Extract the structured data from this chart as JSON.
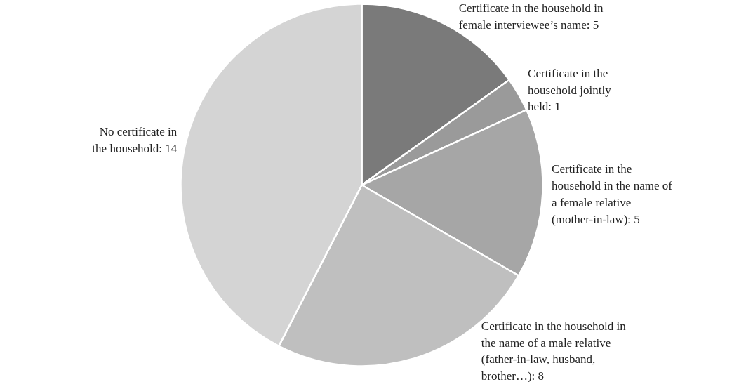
{
  "chart_data": {
    "type": "pie",
    "categories": [
      "Certificate in the household in\nfemale interviewee’s name: 5",
      "Certificate in the\nhousehold jointly\nheld: 1",
      "Certificate in the\nhousehold in the name of\na female relative\n(mother-in-law): 5",
      "Certificate in the household in\nthe name of a male relative\n(father-in-law, husband,\nbrother…): 8",
      "No certificate in\nthe household: 14"
    ],
    "values": [
      5,
      1,
      5,
      8,
      14
    ],
    "colors": [
      "#7a7a7a",
      "#9a9a9a",
      "#a6a6a6",
      "#bfbfbf",
      "#d4d4d4"
    ]
  }
}
